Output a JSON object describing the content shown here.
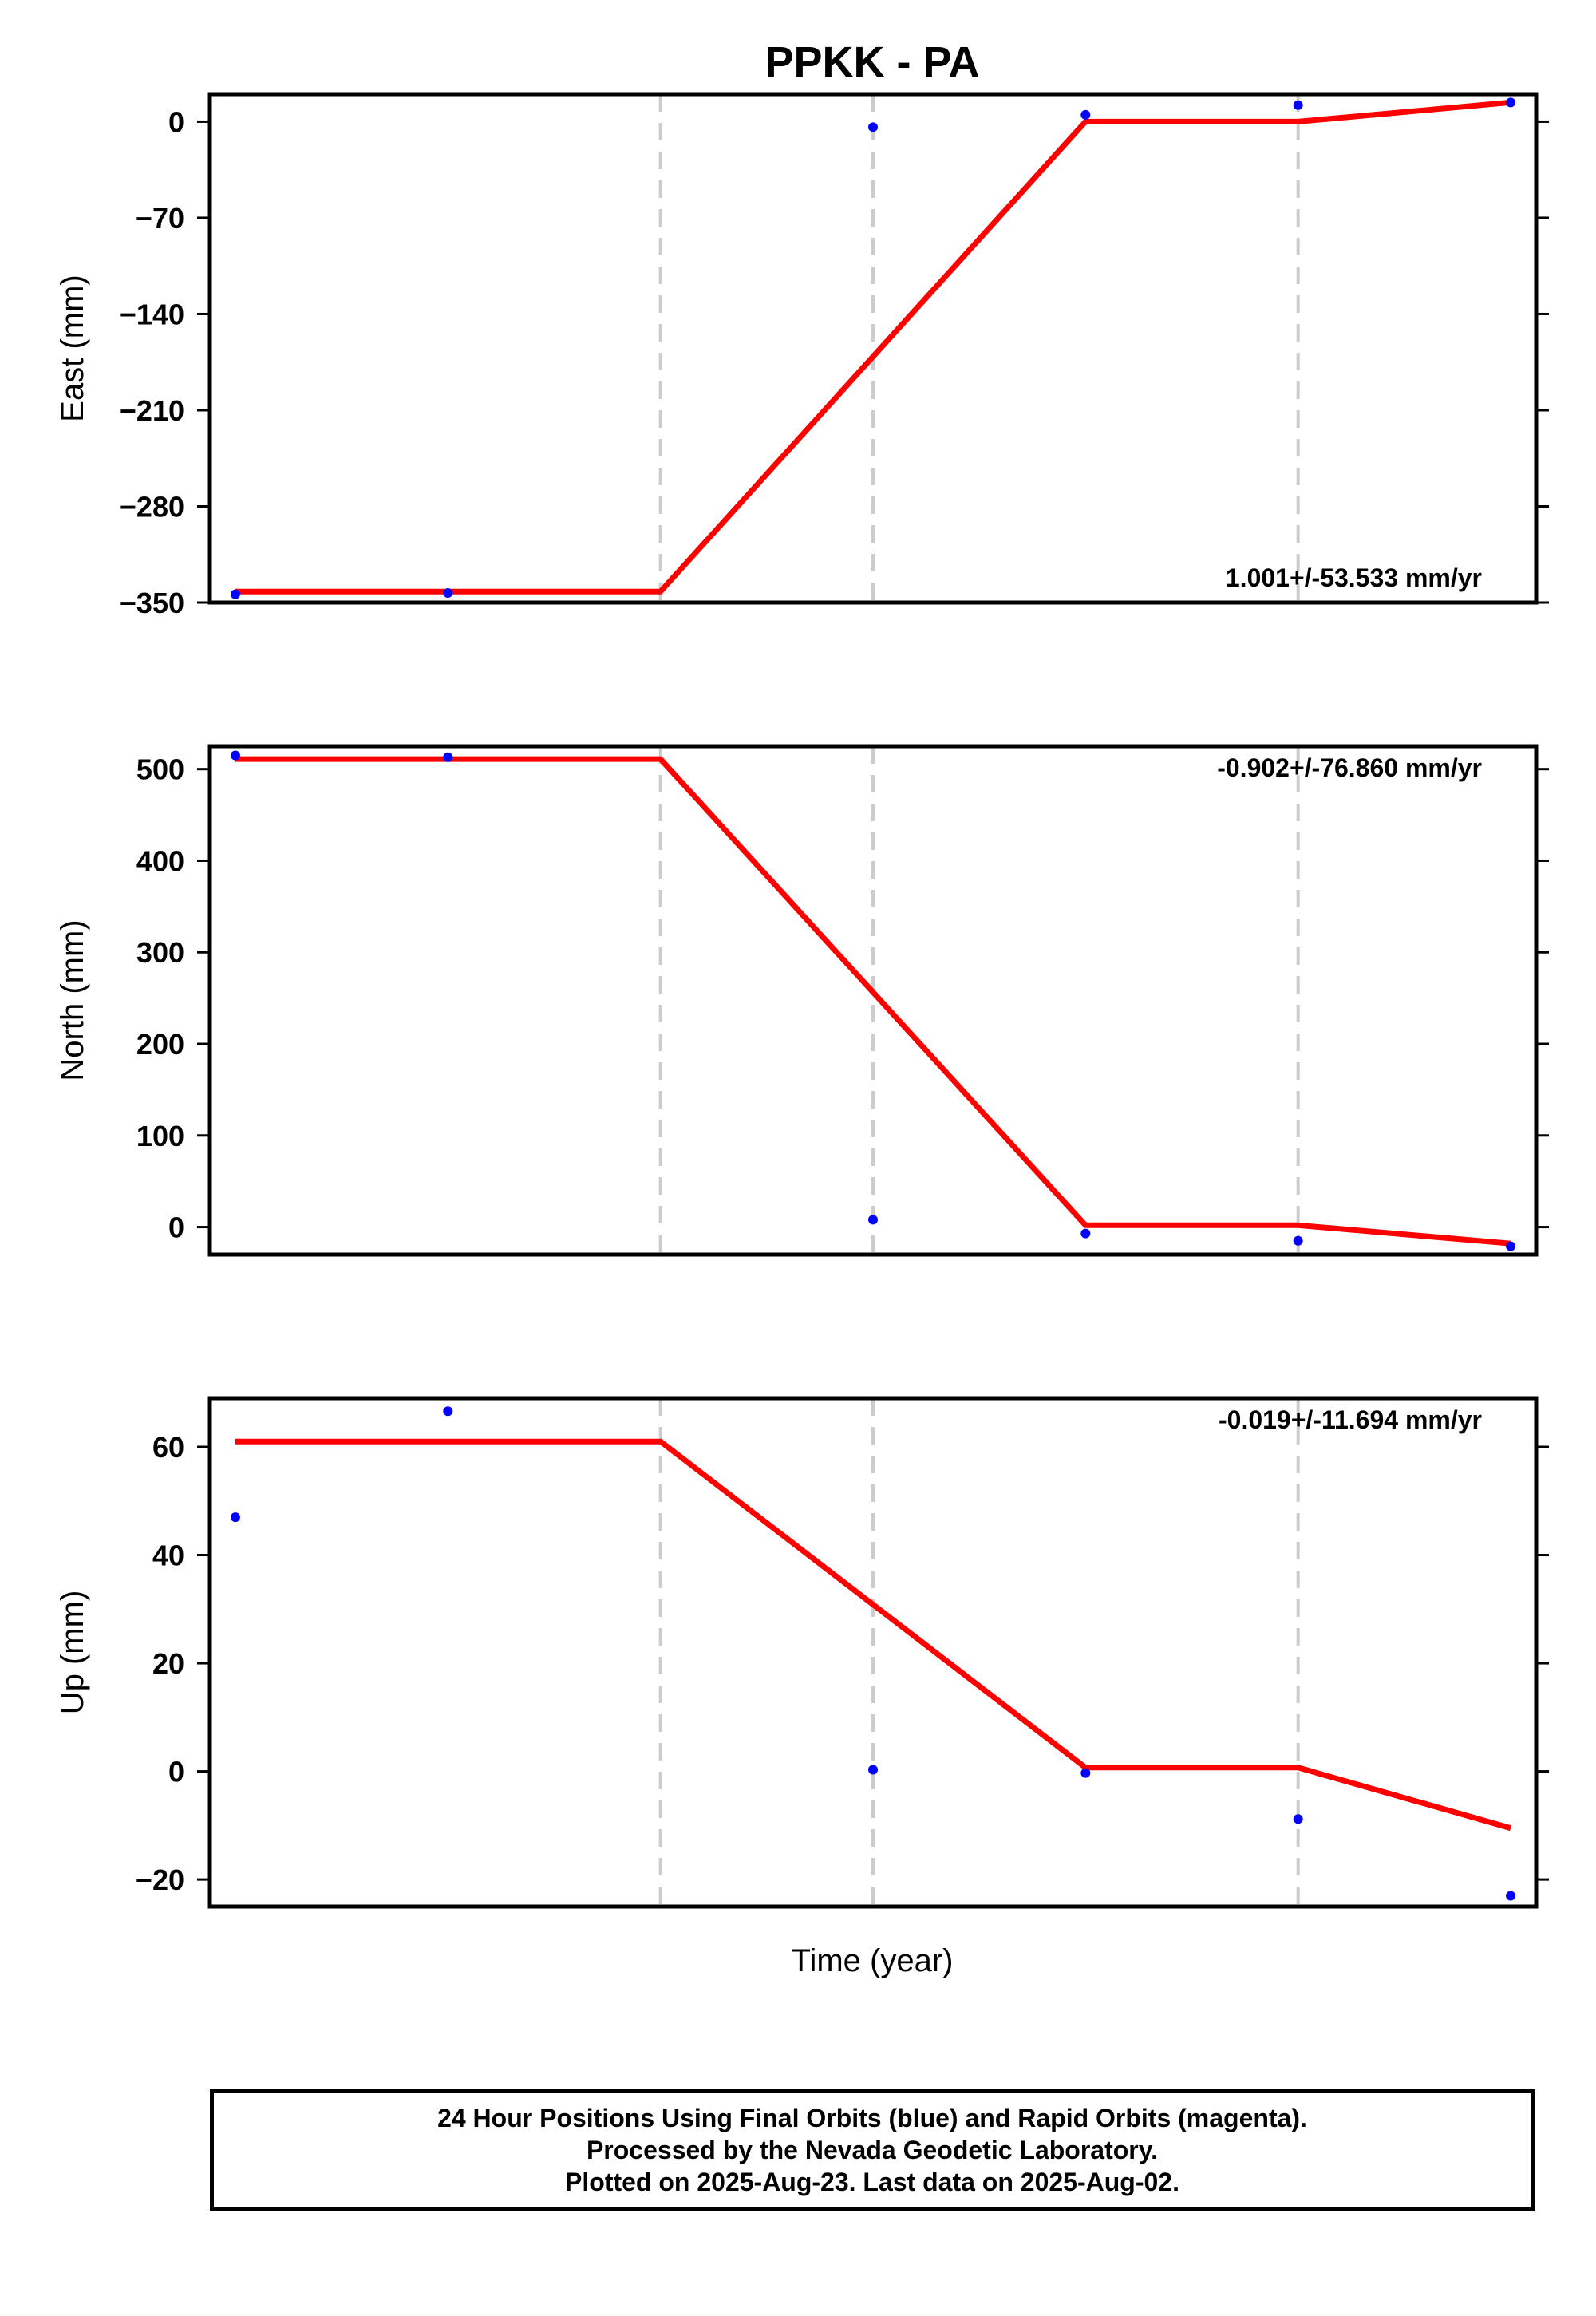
{
  "chart_data": {
    "type": "line",
    "title": "PPKK - PA",
    "xlabel": "Time (year)",
    "x_tick_labels": [],
    "dashed_vlines_x": [
      2.0,
      3.0,
      5.0
    ],
    "panels": [
      {
        "ylabel": "East (mm)",
        "ylim": [
          -350,
          20
        ],
        "yticks": [
          0,
          -70,
          -140,
          -210,
          -280,
          -350
        ],
        "ytick_labels": [
          "0",
          "−70",
          "−140",
          "−210",
          "−280",
          "−350"
        ],
        "rate_text": "1.001+/-53.533 mm/yr",
        "rate_position": "bottom-right",
        "points": {
          "name": "Final Orbits",
          "color": "#0000ff",
          "x": [
            0.0,
            1.0,
            3.0,
            4.0,
            5.0,
            6.0
          ],
          "y": [
            -344,
            -343,
            -4,
            5,
            12,
            14
          ]
        },
        "model": {
          "name": "fit",
          "color": "#ff0000",
          "x": [
            0.0,
            2.0,
            4.0,
            5.0,
            6.0
          ],
          "y": [
            -342,
            -342,
            0,
            0,
            14
          ]
        }
      },
      {
        "ylabel": "North (mm)",
        "ylim": [
          -30,
          525
        ],
        "yticks": [
          0,
          100,
          200,
          300,
          400,
          500
        ],
        "ytick_labels": [
          "0",
          "100",
          "200",
          "300",
          "400",
          "500"
        ],
        "rate_text": "-0.902+/-76.860 mm/yr",
        "rate_position": "top-right",
        "points": {
          "name": "Final Orbits",
          "color": "#0000ff",
          "x": [
            0.0,
            1.0,
            3.0,
            4.0,
            5.0,
            6.0
          ],
          "y": [
            515,
            513,
            8,
            -7,
            -15,
            -21
          ]
        },
        "model": {
          "name": "fit",
          "color": "#ff0000",
          "x": [
            0.0,
            2.0,
            4.0,
            5.0,
            6.0
          ],
          "y": [
            511,
            511,
            2,
            2,
            -18
          ]
        }
      },
      {
        "ylabel": "Up (mm)",
        "ylim": [
          -25,
          69
        ],
        "yticks": [
          60,
          40,
          20,
          0,
          -20
        ],
        "ytick_labels": [
          "60",
          "40",
          "20",
          "0",
          "−20"
        ],
        "rate_text": "-0.019+/-11.694 mm/yr",
        "rate_position": "top-right",
        "points": {
          "name": "Final Orbits",
          "color": "#0000ff",
          "x": [
            0.0,
            1.0,
            3.0,
            4.0,
            5.0,
            6.0
          ],
          "y": [
            47,
            66.6,
            0.3,
            -0.3,
            -8.8,
            -23
          ]
        },
        "model": {
          "name": "fit",
          "color": "#ff0000",
          "x": [
            0.0,
            2.0,
            4.0,
            5.0,
            6.0
          ],
          "y": [
            61,
            61,
            0.7,
            0.7,
            -10.5
          ]
        }
      }
    ]
  },
  "footer": {
    "line1": "24 Hour Positions Using Final Orbits (blue) and Rapid Orbits (magenta).",
    "line2": "Processed by the Nevada Geodetic Laboratory.",
    "line3": "Plotted on 2025-Aug-23. Last data on 2025-Aug-02."
  },
  "colors": {
    "points": "#0000ff",
    "model": "#ff0000",
    "dashed_lines": "#cccccc",
    "frame": "#000000"
  }
}
